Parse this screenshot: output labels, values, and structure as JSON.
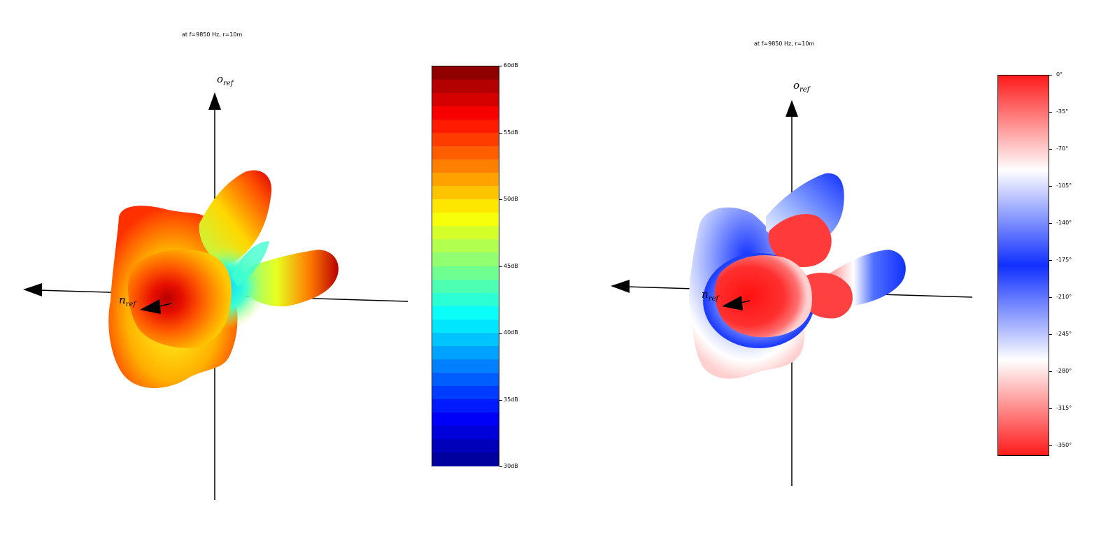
{
  "chart_data": [
    {
      "type": "heatmap",
      "title": "at f=9850 Hz, r=10m",
      "axis_labels": {
        "up": "o",
        "up_sub": "ref",
        "left": "n",
        "left_sub": "ref"
      },
      "colorbar": {
        "colormap": "jet",
        "range": [
          30,
          60
        ],
        "unit": "dB",
        "ticks": [
          "60dB",
          "55dB",
          "50dB",
          "45dB",
          "40dB",
          "35dB",
          "30dB"
        ],
        "levels": 30
      }
    },
    {
      "type": "heatmap",
      "title": "at f=9850 Hz, r=10m",
      "axis_labels": {
        "up": "o",
        "up_sub": "ref",
        "left": "n",
        "left_sub": "ref"
      },
      "colorbar": {
        "colormap": "red-white-blue (cyclic)",
        "range": [
          -360,
          0
        ],
        "unit": "°",
        "ticks": [
          "0°",
          "-35°",
          "-70°",
          "-105°",
          "-140°",
          "-175°",
          "-210°",
          "-245°",
          "-280°",
          "-315°",
          "-350°"
        ]
      }
    }
  ],
  "colors": {
    "jet": [
      "#00008f",
      "#0000ff",
      "#0080ff",
      "#00ffff",
      "#80ff80",
      "#ffff00",
      "#ff8000",
      "#ff0000",
      "#800000"
    ],
    "phase": [
      "#ff1a1a",
      "#ffffff",
      "#1030ff",
      "#ffffff",
      "#ff1a1a"
    ]
  }
}
